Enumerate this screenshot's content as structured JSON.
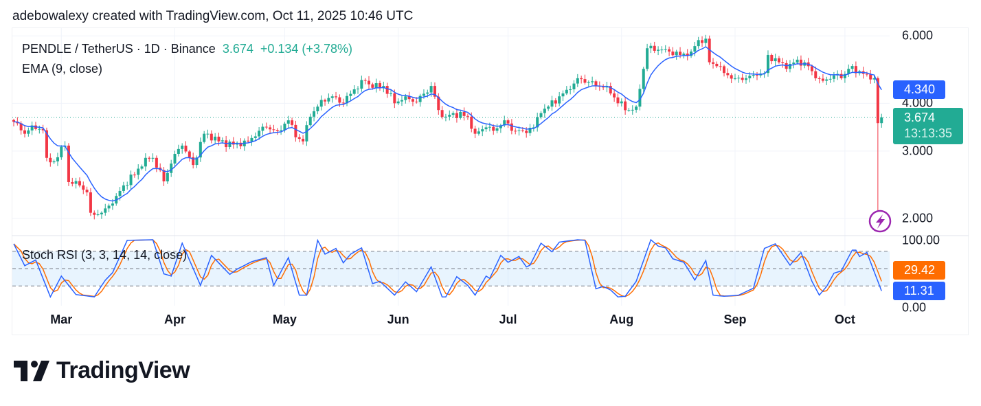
{
  "header": {
    "credit": "adebowalexy created with TradingView.com, Oct 11, 2025 10:46 UTC"
  },
  "legend": {
    "symbol": "PENDLE / TetherUS · 1D · Binance",
    "last": "3.674",
    "change": "+0.134 (+3.78%)",
    "ema": "EMA (9, close)",
    "stoch": "Stoch RSI (3, 3, 14, 14, close)"
  },
  "price_axis": {
    "ticks": [
      "6.000",
      "4.000",
      "3.000",
      "2.000"
    ],
    "tick_values": [
      6,
      4,
      3,
      2
    ]
  },
  "stoch_axis": {
    "ticks": [
      "100.00",
      "0.00"
    ]
  },
  "tags": {
    "ema_value": "4.340",
    "last_price": "3.674",
    "countdown": "13:13:35",
    "stoch_d": "29.42",
    "stoch_k": "11.31"
  },
  "colors": {
    "up": "#22ab94",
    "down": "#f23645",
    "ema": "#2962ff",
    "stoch_k": "#2962ff",
    "stoch_d": "#ff6d00",
    "alert": "#9c27b0"
  },
  "logo": {
    "text": "TradingView"
  },
  "chart_data": {
    "type": "candlestick",
    "title": "PENDLE / TetherUS · 1D · Binance",
    "start_date": "2025-02-16",
    "scale": "log",
    "ylim": [
      1.9,
      6.3
    ],
    "months": [
      {
        "label": "Mar",
        "day": 13
      },
      {
        "label": "Apr",
        "day": 44
      },
      {
        "label": "May",
        "day": 74
      },
      {
        "label": "Jun",
        "day": 105
      },
      {
        "label": "Jul",
        "day": 135
      },
      {
        "label": "Aug",
        "day": 166
      },
      {
        "label": "Sep",
        "day": 197
      },
      {
        "label": "Oct",
        "day": 227
      }
    ],
    "close_keypoints": [
      [
        0,
        3.58
      ],
      [
        3,
        3.33
      ],
      [
        5,
        3.5
      ],
      [
        8,
        3.4
      ],
      [
        9,
        2.88
      ],
      [
        11,
        2.82
      ],
      [
        14,
        3.1
      ],
      [
        15,
        2.49
      ],
      [
        18,
        2.44
      ],
      [
        20,
        2.34
      ],
      [
        21,
        2.07
      ],
      [
        23,
        2.05
      ],
      [
        24,
        2.07
      ],
      [
        26,
        2.16
      ],
      [
        28,
        2.29
      ],
      [
        30,
        2.44
      ],
      [
        33,
        2.6
      ],
      [
        36,
        2.88
      ],
      [
        38,
        2.88
      ],
      [
        41,
        2.5
      ],
      [
        44,
        2.95
      ],
      [
        46,
        3.1
      ],
      [
        49,
        2.76
      ],
      [
        52,
        3.33
      ],
      [
        53,
        3.33
      ],
      [
        56,
        3.18
      ],
      [
        60,
        3.12
      ],
      [
        64,
        3.18
      ],
      [
        67,
        3.39
      ],
      [
        69,
        3.46
      ],
      [
        72,
        3.39
      ],
      [
        75,
        3.61
      ],
      [
        77,
        3.26
      ],
      [
        79,
        3.18
      ],
      [
        81,
        3.69
      ],
      [
        83,
        3.92
      ],
      [
        84,
        4.08
      ],
      [
        87,
        4.17
      ],
      [
        90,
        4.0
      ],
      [
        93,
        4.35
      ],
      [
        96,
        4.58
      ],
      [
        98,
        4.39
      ],
      [
        101,
        4.44
      ],
      [
        104,
        4.0
      ],
      [
        107,
        4.17
      ],
      [
        110,
        4.03
      ],
      [
        114,
        4.44
      ],
      [
        116,
        3.84
      ],
      [
        118,
        3.69
      ],
      [
        120,
        3.77
      ],
      [
        124,
        3.69
      ],
      [
        126,
        3.33
      ],
      [
        129,
        3.46
      ],
      [
        131,
        3.39
      ],
      [
        134,
        3.61
      ],
      [
        136,
        3.39
      ],
      [
        139,
        3.39
      ],
      [
        142,
        3.46
      ],
      [
        144,
        3.77
      ],
      [
        146,
        3.92
      ],
      [
        149,
        4.17
      ],
      [
        152,
        4.35
      ],
      [
        154,
        4.65
      ],
      [
        157,
        4.54
      ],
      [
        159,
        4.44
      ],
      [
        162,
        4.44
      ],
      [
        165,
        4.0
      ],
      [
        168,
        3.84
      ],
      [
        170,
        3.92
      ],
      [
        172,
        4.92
      ],
      [
        173,
        5.57
      ],
      [
        176,
        5.52
      ],
      [
        179,
        5.46
      ],
      [
        182,
        5.35
      ],
      [
        185,
        5.46
      ],
      [
        187,
        5.85
      ],
      [
        189,
        5.9
      ],
      [
        190,
        5.12
      ],
      [
        192,
        5.0
      ],
      [
        194,
        4.8
      ],
      [
        197,
        4.65
      ],
      [
        200,
        4.65
      ],
      [
        203,
        4.73
      ],
      [
        205,
        4.8
      ],
      [
        206,
        5.35
      ],
      [
        209,
        5.12
      ],
      [
        211,
        4.92
      ],
      [
        214,
        5.2
      ],
      [
        217,
        5.0
      ],
      [
        219,
        4.65
      ],
      [
        221,
        4.58
      ],
      [
        224,
        4.73
      ],
      [
        226,
        4.65
      ],
      [
        228,
        4.92
      ],
      [
        231,
        4.85
      ],
      [
        233,
        4.76
      ],
      [
        235,
        4.65
      ],
      [
        236,
        3.55
      ],
      [
        237,
        3.674
      ]
    ],
    "wick_overrides": [
      {
        "day": 236,
        "low": 2.1,
        "high": 4.7
      }
    ],
    "ema_period": 9,
    "stoch_rsi": {
      "params": [
        3,
        3,
        14,
        14
      ],
      "ylim": [
        0,
        100
      ],
      "bands": [
        80,
        50,
        20
      ],
      "k_keypoints": [
        [
          0,
          93
        ],
        [
          3,
          55
        ],
        [
          6,
          65
        ],
        [
          10,
          1
        ],
        [
          13,
          37
        ],
        [
          17,
          5
        ],
        [
          22,
          1
        ],
        [
          25,
          30
        ],
        [
          27,
          43
        ],
        [
          31,
          99
        ],
        [
          38,
          100
        ],
        [
          41,
          41
        ],
        [
          43,
          37
        ],
        [
          46,
          94
        ],
        [
          51,
          21
        ],
        [
          54,
          73
        ],
        [
          59,
          40
        ],
        [
          61,
          49
        ],
        [
          65,
          62
        ],
        [
          69,
          69
        ],
        [
          71,
          21
        ],
        [
          75,
          69
        ],
        [
          78,
          4
        ],
        [
          80,
          4
        ],
        [
          83,
          99
        ],
        [
          85,
          75
        ],
        [
          88,
          85
        ],
        [
          90,
          60
        ],
        [
          92,
          75
        ],
        [
          95,
          86
        ],
        [
          98,
          24
        ],
        [
          100,
          28
        ],
        [
          104,
          4
        ],
        [
          107,
          27
        ],
        [
          110,
          10
        ],
        [
          114,
          53
        ],
        [
          117,
          1
        ],
        [
          118,
          1
        ],
        [
          121,
          36
        ],
        [
          124,
          21
        ],
        [
          126,
          4
        ],
        [
          129,
          37
        ],
        [
          130,
          33
        ],
        [
          133,
          73
        ],
        [
          135,
          61
        ],
        [
          138,
          71
        ],
        [
          140,
          53
        ],
        [
          141,
          56
        ],
        [
          144,
          94
        ],
        [
          147,
          79
        ],
        [
          149,
          96
        ],
        [
          154,
          100
        ],
        [
          156,
          99
        ],
        [
          159,
          15
        ],
        [
          161,
          19
        ],
        [
          163,
          13
        ],
        [
          165,
          1
        ],
        [
          167,
          2
        ],
        [
          170,
          28
        ],
        [
          174,
          100
        ],
        [
          176,
          89
        ],
        [
          178,
          86
        ],
        [
          180,
          67
        ],
        [
          183,
          61
        ],
        [
          186,
          30
        ],
        [
          189,
          64
        ],
        [
          191,
          4
        ],
        [
          194,
          2
        ],
        [
          198,
          4
        ],
        [
          200,
          10
        ],
        [
          202,
          16
        ],
        [
          205,
          85
        ],
        [
          208,
          93
        ],
        [
          212,
          56
        ],
        [
          215,
          78
        ],
        [
          218,
          28
        ],
        [
          220,
          4
        ],
        [
          222,
          19
        ],
        [
          224,
          42
        ],
        [
          226,
          46
        ],
        [
          229,
          82
        ],
        [
          230,
          82
        ],
        [
          231,
          71
        ],
        [
          233,
          78
        ],
        [
          237,
          11.31
        ]
      ],
      "d_smoothing": 3
    }
  }
}
